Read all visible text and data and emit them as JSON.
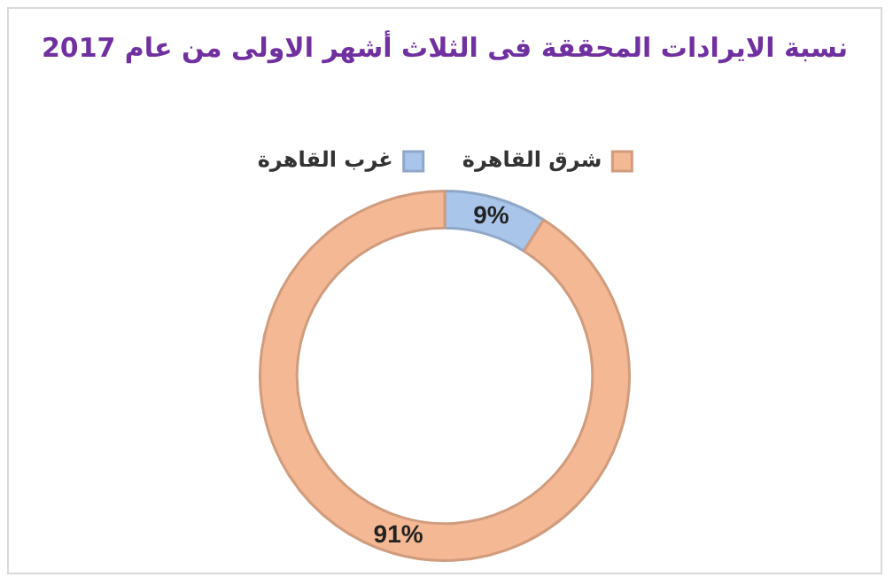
{
  "chart_data": {
    "type": "donut",
    "title": "نسبة الايرادات المحققة فى الثلاث أشهر الاولى من عام 2017",
    "categories": [
      "غرب القاهرة",
      "شرق القاهرة"
    ],
    "values": [
      9,
      91
    ],
    "value_labels": [
      "9%",
      "91%"
    ],
    "colors": [
      "#a9c5ea",
      "#f5b894"
    ],
    "legend": "top"
  }
}
